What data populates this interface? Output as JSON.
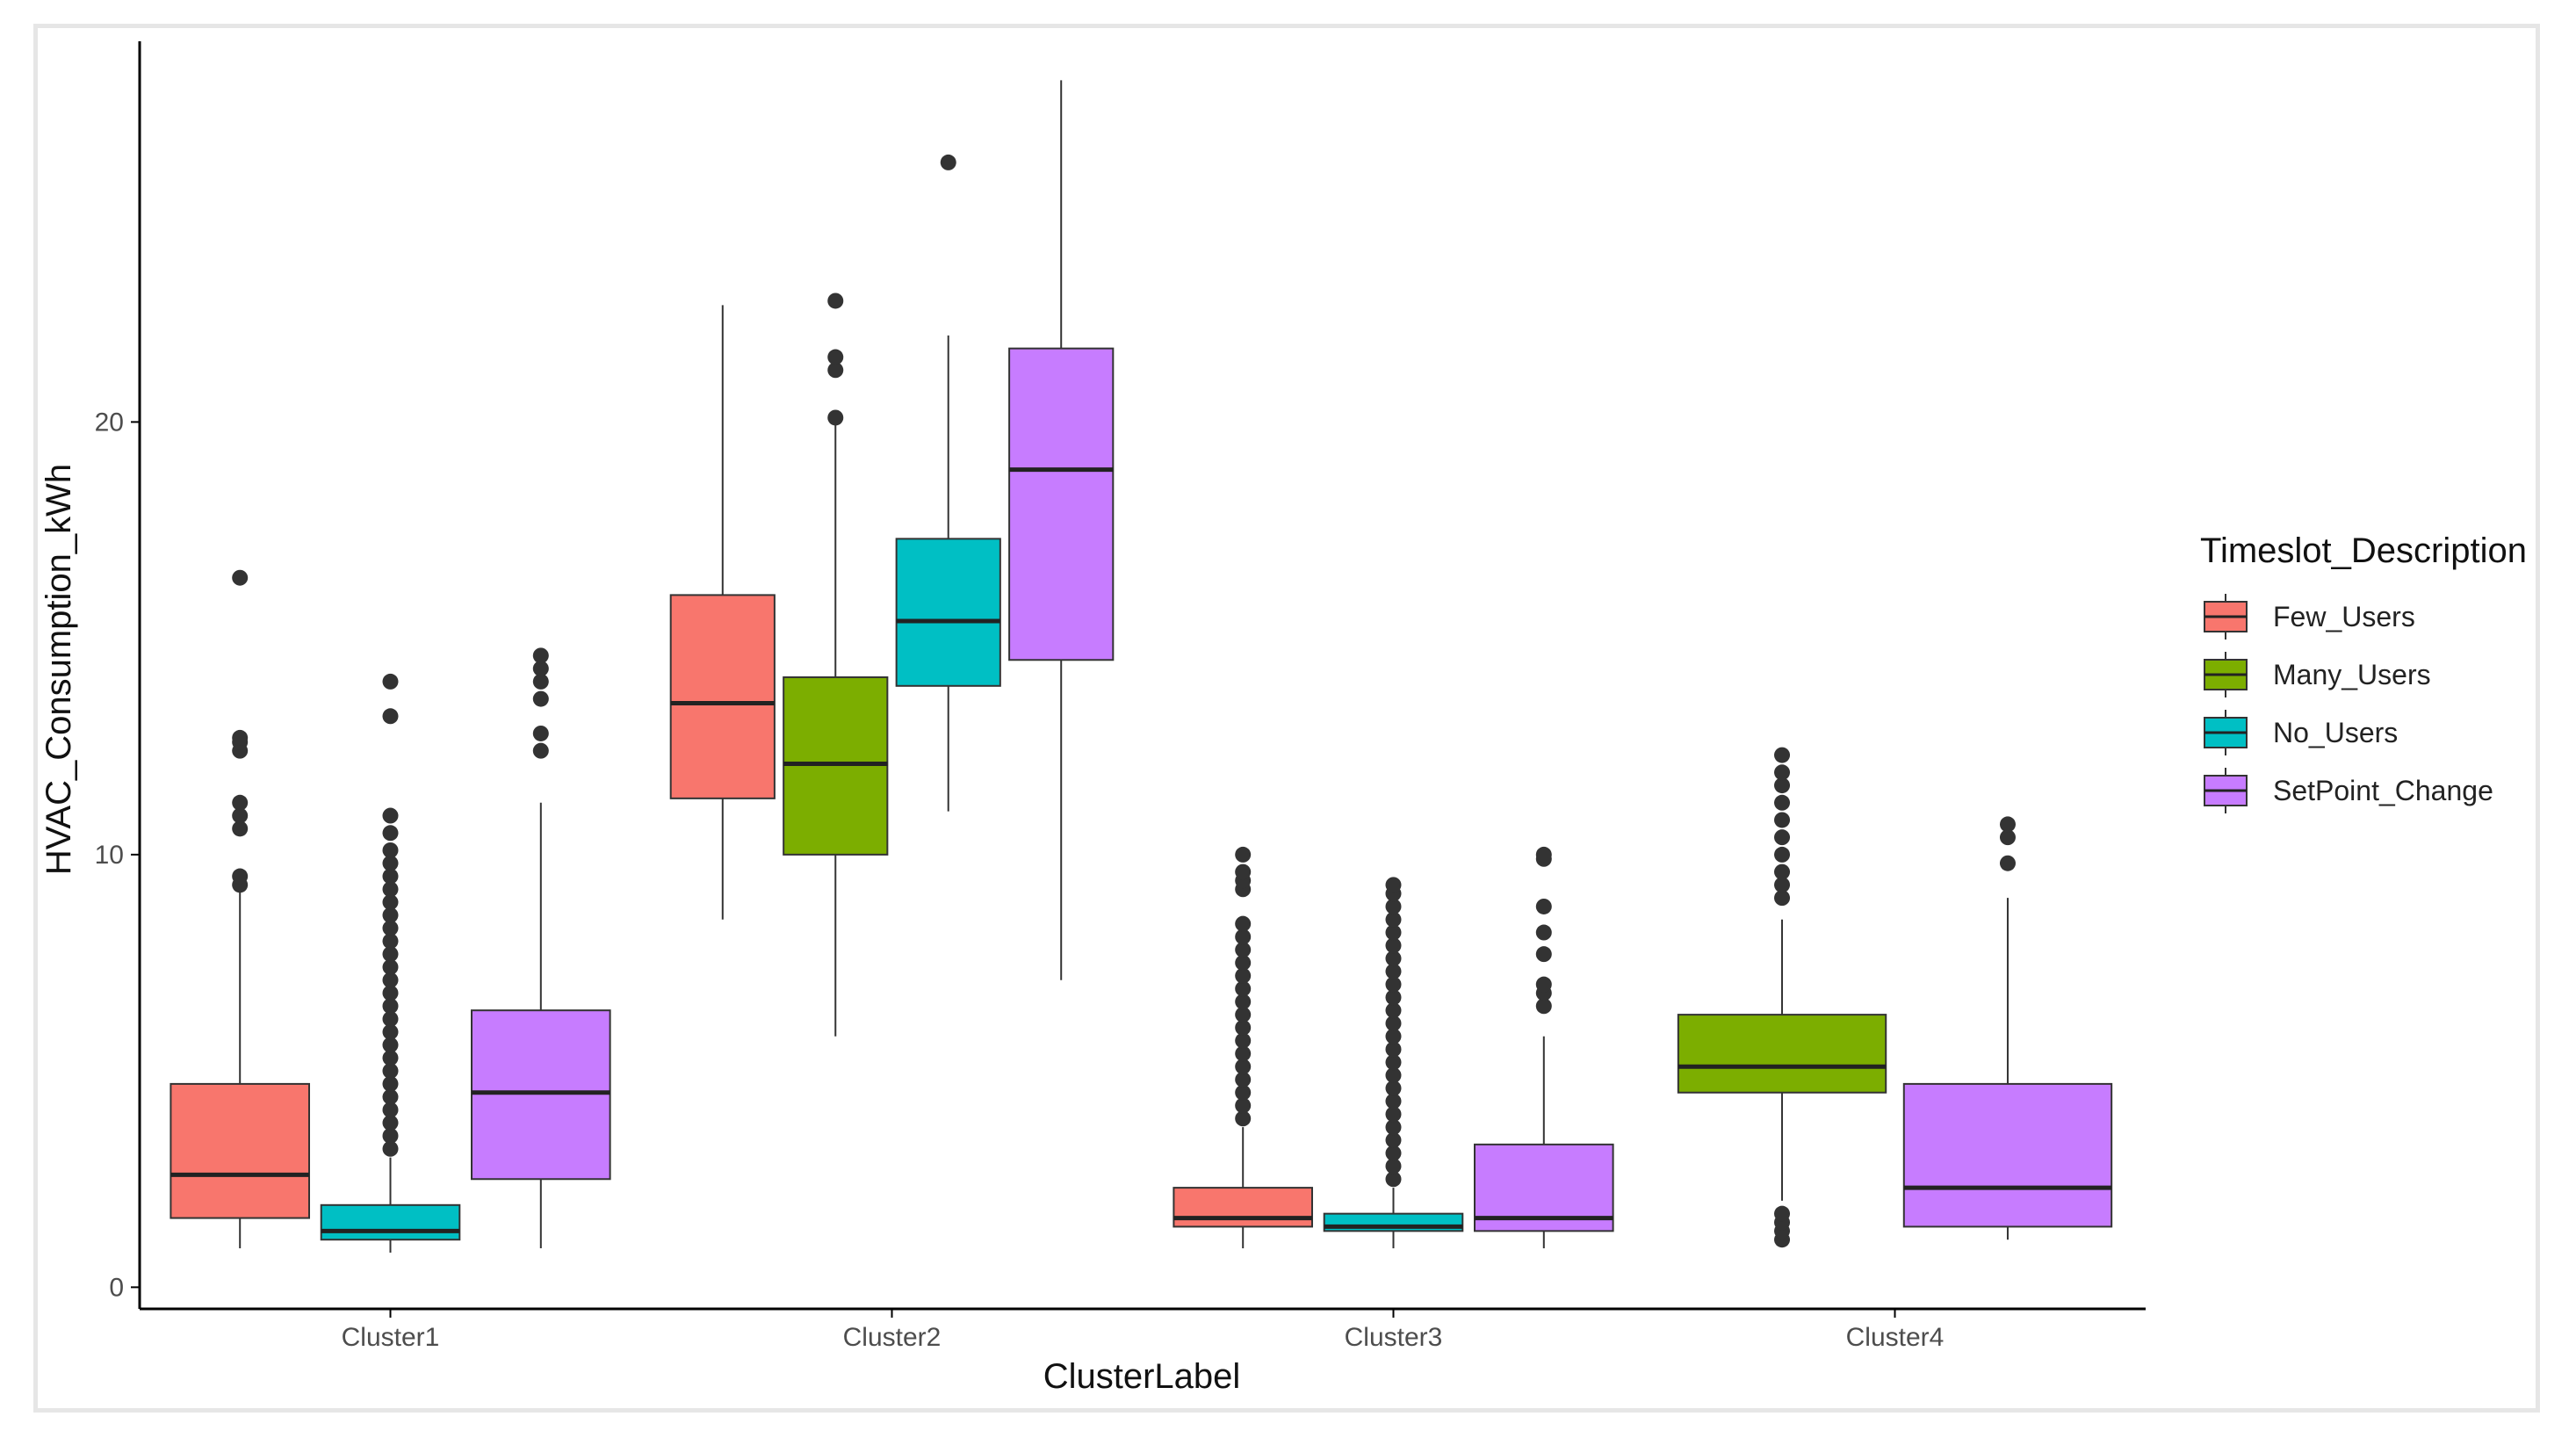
{
  "chart_data": {
    "type": "boxplot",
    "xlabel": "ClusterLabel",
    "ylabel": "HVAC_Consumption_kWh",
    "ylim": [
      -0.5,
      28.8
    ],
    "yticks": [
      0,
      10,
      20
    ],
    "grid": false,
    "categories": [
      "Cluster1",
      "Cluster2",
      "Cluster3",
      "Cluster4"
    ],
    "legend": {
      "title": "Timeslot_Description",
      "placement": "right",
      "entries": [
        {
          "name": "Few_Users",
          "color": "#F8766D"
        },
        {
          "name": "Many_Users",
          "color": "#7CAE00"
        },
        {
          "name": "No_Users",
          "color": "#00BFC4"
        },
        {
          "name": "SetPoint_Change",
          "color": "#C77CFF"
        }
      ]
    },
    "boxes": [
      {
        "cluster": "Cluster1",
        "group": "Few_Users",
        "slot": 0,
        "nslots": 3,
        "whisker_low": 0.9,
        "q1": 1.6,
        "median": 2.6,
        "q3": 4.7,
        "whisker_high": 9.2,
        "outliers": [
          9.3,
          9.5,
          10.6,
          10.9,
          11.2,
          12.4,
          12.6,
          12.7,
          16.4
        ]
      },
      {
        "cluster": "Cluster1",
        "group": "No_Users",
        "slot": 1,
        "nslots": 3,
        "whisker_low": 0.8,
        "q1": 1.1,
        "median": 1.3,
        "q3": 1.9,
        "whisker_high": 3.0,
        "outliers": [
          3.2,
          3.5,
          3.8,
          4.1,
          4.4,
          4.7,
          5.0,
          5.3,
          5.6,
          5.9,
          6.2,
          6.5,
          6.8,
          7.1,
          7.4,
          7.7,
          8.0,
          8.3,
          8.6,
          8.9,
          9.2,
          9.5,
          9.8,
          10.1,
          10.5,
          10.9,
          13.2,
          14.0
        ]
      },
      {
        "cluster": "Cluster1",
        "group": "SetPoint_Change",
        "slot": 2,
        "nslots": 3,
        "whisker_low": 0.9,
        "q1": 2.5,
        "median": 4.5,
        "q3": 6.4,
        "whisker_high": 11.2,
        "outliers": [
          12.4,
          12.8,
          13.6,
          14.0,
          14.3,
          14.6
        ]
      },
      {
        "cluster": "Cluster2",
        "group": "Few_Users",
        "slot": 0,
        "nslots": 4,
        "whisker_low": 8.5,
        "q1": 11.3,
        "median": 13.5,
        "q3": 16.0,
        "whisker_high": 22.7,
        "outliers": []
      },
      {
        "cluster": "Cluster2",
        "group": "Many_Users",
        "slot": 1,
        "nslots": 4,
        "whisker_low": 5.8,
        "q1": 10.0,
        "median": 12.1,
        "q3": 14.1,
        "whisker_high": 20.0,
        "outliers": [
          20.1,
          21.2,
          21.5,
          22.8
        ]
      },
      {
        "cluster": "Cluster2",
        "group": "No_Users",
        "slot": 2,
        "nslots": 4,
        "whisker_low": 11.0,
        "q1": 13.9,
        "median": 15.4,
        "q3": 17.3,
        "whisker_high": 22.0,
        "outliers": [
          26.0
        ]
      },
      {
        "cluster": "Cluster2",
        "group": "SetPoint_Change",
        "slot": 3,
        "nslots": 4,
        "whisker_low": 7.1,
        "q1": 14.5,
        "median": 18.9,
        "q3": 21.7,
        "whisker_high": 27.9,
        "outliers": []
      },
      {
        "cluster": "Cluster3",
        "group": "Few_Users",
        "slot": 0,
        "nslots": 3,
        "whisker_low": 0.9,
        "q1": 1.4,
        "median": 1.6,
        "q3": 2.3,
        "whisker_high": 3.7,
        "outliers": [
          3.9,
          4.2,
          4.5,
          4.8,
          5.1,
          5.4,
          5.7,
          6.0,
          6.3,
          6.6,
          6.9,
          7.2,
          7.5,
          7.8,
          8.1,
          8.4,
          9.2,
          9.4,
          9.6,
          10.0
        ]
      },
      {
        "cluster": "Cluster3",
        "group": "No_Users",
        "slot": 1,
        "nslots": 3,
        "whisker_low": 0.9,
        "q1": 1.3,
        "median": 1.4,
        "q3": 1.7,
        "whisker_high": 2.3,
        "outliers": [
          2.5,
          2.8,
          3.1,
          3.4,
          3.7,
          4.0,
          4.3,
          4.6,
          4.9,
          5.2,
          5.5,
          5.8,
          6.1,
          6.4,
          6.7,
          7.0,
          7.3,
          7.6,
          7.9,
          8.2,
          8.5,
          8.8,
          9.1,
          9.3
        ]
      },
      {
        "cluster": "Cluster3",
        "group": "SetPoint_Change",
        "slot": 2,
        "nslots": 3,
        "whisker_low": 0.9,
        "q1": 1.3,
        "median": 1.6,
        "q3": 3.3,
        "whisker_high": 5.8,
        "outliers": [
          6.5,
          6.8,
          7.0,
          7.7,
          8.2,
          8.8,
          9.9,
          10.0
        ]
      },
      {
        "cluster": "Cluster4",
        "group": "Many_Users",
        "slot": 0,
        "nslots": 2,
        "whisker_low": 2.0,
        "q1": 4.5,
        "median": 5.1,
        "q3": 6.3,
        "whisker_high": 8.5,
        "outliers": [
          1.1,
          1.3,
          1.5,
          1.7,
          9.0,
          9.3,
          9.6,
          10.0,
          10.4,
          10.8,
          11.2,
          11.6,
          11.9,
          12.3
        ]
      },
      {
        "cluster": "Cluster4",
        "group": "SetPoint_Change",
        "slot": 1,
        "nslots": 2,
        "whisker_low": 1.1,
        "q1": 1.4,
        "median": 2.3,
        "q3": 4.7,
        "whisker_high": 9.0,
        "outliers": [
          9.8,
          10.4,
          10.7
        ]
      }
    ]
  }
}
